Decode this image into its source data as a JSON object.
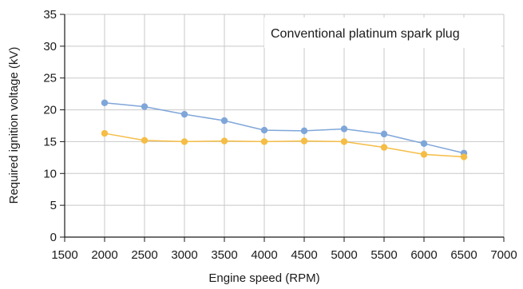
{
  "chart_data": {
    "type": "line",
    "title": "",
    "xlabel": "Engine speed (RPM)",
    "ylabel": "Required ignition voltage (kV)",
    "xlim": [
      1500,
      7000
    ],
    "ylim": [
      0,
      35
    ],
    "x_ticks": [
      "1500",
      "2000",
      "2500",
      "3000",
      "3500",
      "4000",
      "4500",
      "5000",
      "5500",
      "6000",
      "6500",
      "7000"
    ],
    "y_ticks": [
      "0",
      "5",
      "10",
      "15",
      "20",
      "25",
      "30",
      "35"
    ],
    "grid": true,
    "annotation": "Conventional platinum spark plug",
    "x": [
      2000,
      2500,
      3000,
      3500,
      4000,
      4500,
      5000,
      5500,
      6000,
      6500
    ],
    "series": [
      {
        "color": "#7fa6d9",
        "values": [
          21.1,
          20.5,
          19.3,
          18.3,
          16.8,
          16.7,
          17.0,
          16.2,
          14.7,
          13.2
        ]
      },
      {
        "color": "#f5bd45",
        "values": [
          16.3,
          15.2,
          15.0,
          15.1,
          15.0,
          15.1,
          15.0,
          14.1,
          13.0,
          12.6
        ]
      }
    ]
  }
}
